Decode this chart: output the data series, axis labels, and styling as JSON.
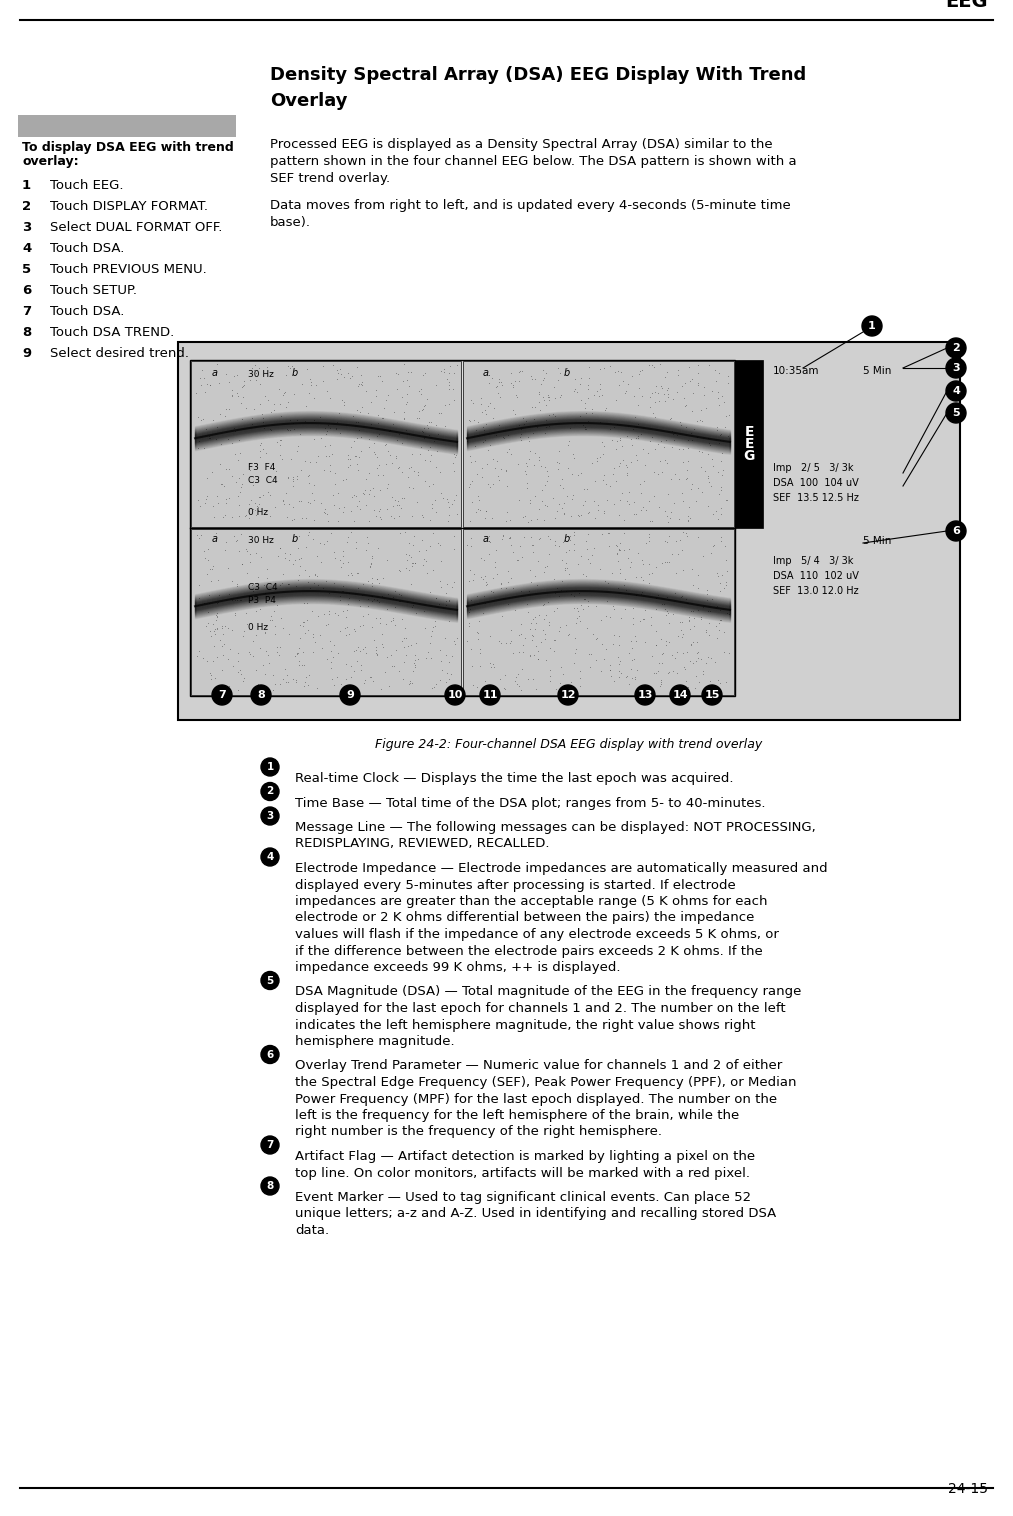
{
  "page_title": "EEG",
  "page_number": "24-15",
  "section_title_line1": "Density Spectral Array (DSA) EEG Display With Trend",
  "section_title_line2": "Overlay",
  "left_box_title_line1": "To display DSA EEG with trend",
  "left_box_title_line2": "overlay:",
  "left_steps": [
    [
      "1",
      "Touch EEG."
    ],
    [
      "2",
      "Touch DISPLAY FORMAT."
    ],
    [
      "3",
      "Select DUAL FORMAT OFF."
    ],
    [
      "4",
      "Touch DSA."
    ],
    [
      "5",
      "Touch PREVIOUS MENU."
    ],
    [
      "6",
      "Touch SETUP."
    ],
    [
      "7",
      "Touch DSA."
    ],
    [
      "8",
      "Touch DSA TREND."
    ],
    [
      "9",
      "Select desired trend."
    ]
  ],
  "body_para1_lines": [
    "Processed EEG is displayed as a Density Spectral Array (DSA) similar to the",
    "pattern shown in the four channel EEG below. The DSA pattern is shown with a",
    "SEF trend overlay."
  ],
  "body_para2_lines": [
    "Data moves from right to left, and is updated every 4-seconds (5-minute time",
    "base)."
  ],
  "figure_caption": "Figure 24-2: Four-channel DSA EEG display with trend overlay",
  "eeg_time": "10:35am",
  "eeg_timebase": "5 Min",
  "eeg_ch1_imp": "Imp   2/ 5   3/ 3k",
  "eeg_ch1_dsa": "DSA  100  104 uV",
  "eeg_ch1_sef": "SEF  13.5 12.5 Hz",
  "eeg_ch2_timebase": "5 Min",
  "eeg_ch2_imp": "Imp   5/ 4   3/ 3k",
  "eeg_ch2_dsa": "DSA  110  102 uV",
  "eeg_ch2_sef": "SEF  13.0 12.0 Hz",
  "numbered_items": [
    [
      "1",
      "Real-time Clock — Displays the time the last epoch was acquired."
    ],
    [
      "2",
      "Time Base — Total time of the DSA plot; ranges from 5- to 40-minutes."
    ],
    [
      "3",
      "Message Line — The following messages can be displayed: NOT PROCESSING, REDISPLAYING, REVIEWED, RECALLED."
    ],
    [
      "4",
      "Electrode Impedance — Electrode impedances are automatically measured and displayed every 5-minutes after processing is started. If electrode impedances are greater than the acceptable range (5 K ohms for each electrode or 2 K ohms differential between the pairs) the impedance values will flash if the impedance of any electrode exceeds 5 K ohms, or if the difference between the electrode pairs exceeds 2 K ohms. If the impedance exceeds 99 K ohms, ++ is displayed."
    ],
    [
      "5",
      "DSA Magnitude (DSA) — Total magnitude of the EEG in the frequency range displayed for the last epoch for channels 1 and 2. The number on the left indicates the left hemisphere magnitude, the right value shows right hemisphere magnitude."
    ],
    [
      "6",
      "Overlay Trend Parameter — Numeric value for channels 1 and 2 of either the Spectral Edge Frequency (SEF), Peak Power Frequency (PPF), or Median Power Frequency (MPF) for the last epoch displayed. The number on the left is the frequency for the left hemisphere of the brain, while the right number is the frequency of the right hemisphere."
    ],
    [
      "7",
      "Artifact Flag — Artifact detection is marked by lighting a pixel on the top line. On color monitors, artifacts will be marked with a red pixel."
    ],
    [
      "8",
      "Event Marker — Used to tag significant clinical events. Can place 52 unique letters; a-z and A-Z. Used in identifying and recalling stored DSA data."
    ]
  ],
  "bg_color": "#ffffff",
  "left_box_bg": "#a8a8a8",
  "figure_outer_bg": "#d0d0d0",
  "figure_inner_bg": "#ffffff",
  "eeg_panel_bg": "#e8e8e8",
  "eeg_dark_bg": "#000000",
  "circle_fill": "#000000",
  "circle_text": "#ffffff"
}
